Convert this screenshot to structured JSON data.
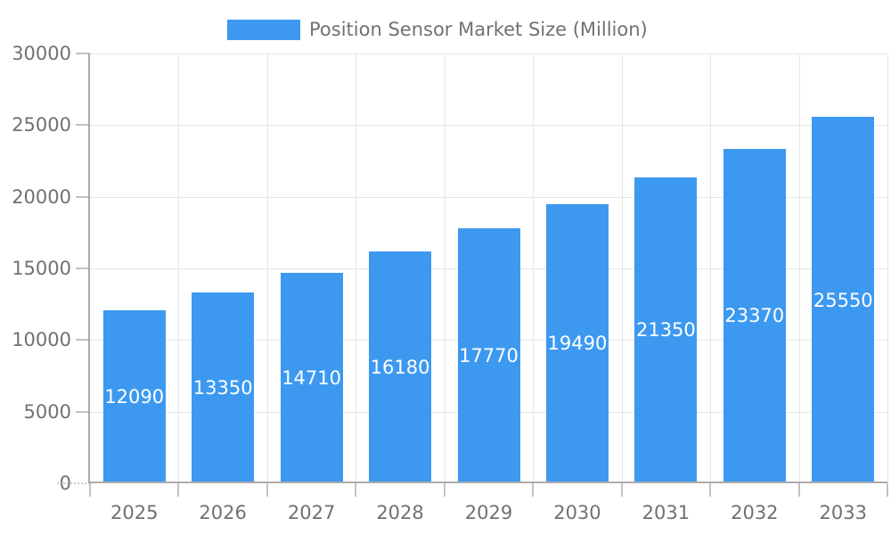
{
  "chart_data": {
    "type": "bar",
    "title": "Position Sensor Market Size (Million)",
    "categories": [
      "2025",
      "2026",
      "2027",
      "2028",
      "2029",
      "2030",
      "2031",
      "2032",
      "2033"
    ],
    "values": [
      12090,
      13350,
      14710,
      16180,
      17770,
      19490,
      21350,
      23370,
      25550
    ],
    "xlabel": "",
    "ylabel": "",
    "ylim": [
      0,
      30000
    ],
    "yticks": [
      0,
      5000,
      10000,
      15000,
      20000,
      25000,
      30000
    ],
    "grid": true,
    "legend_position": "top",
    "bar_color": "#3d99f0",
    "value_label_color": "#ffffff",
    "axis_text_color": "#717171"
  }
}
